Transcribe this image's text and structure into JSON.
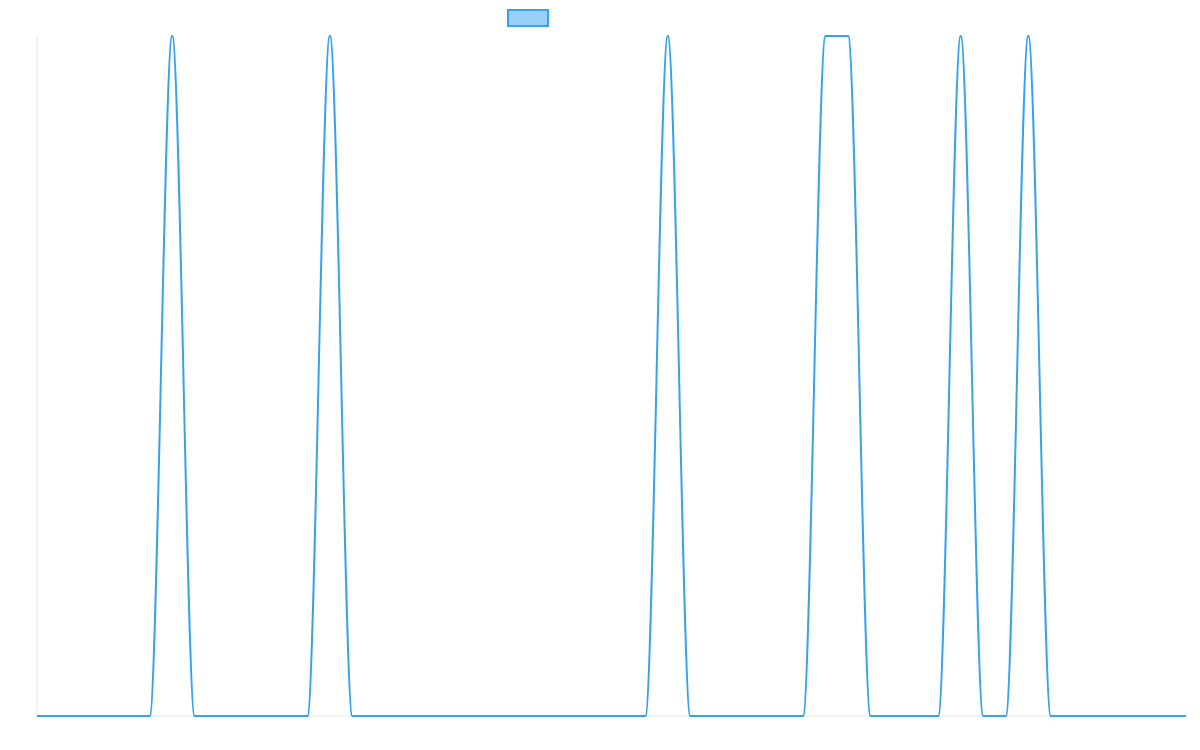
{
  "chart_data": {
    "type": "line",
    "title": "",
    "xlabel": "",
    "ylabel": "",
    "ylim": [
      0,
      1
    ],
    "x": [
      0,
      1,
      2,
      3,
      4,
      5,
      6,
      7,
      8,
      9,
      10,
      11,
      12,
      13,
      14,
      15,
      16,
      17,
      18,
      19,
      20,
      21,
      22,
      23,
      24,
      25,
      26,
      27,
      28,
      29,
      30,
      31,
      32,
      33,
      34,
      35,
      36,
      37,
      38,
      39,
      40,
      41,
      42,
      43,
      44,
      45,
      46,
      47,
      48,
      49,
      50,
      51
    ],
    "series": [
      {
        "values": [
          0,
          0,
          0,
          0,
          0,
          0,
          1,
          0,
          0,
          0,
          0,
          0,
          0,
          1,
          0,
          0,
          0,
          0,
          0,
          0,
          0,
          0,
          0,
          0,
          0,
          0,
          0,
          0,
          1,
          0,
          0,
          0,
          0,
          0,
          0,
          1,
          1,
          0,
          0,
          0,
          0,
          1,
          0,
          0,
          1,
          0,
          0,
          0,
          0,
          0,
          0,
          0
        ],
        "color": "#36a2eb",
        "fill": "#9ad0f5"
      }
    ],
    "grid": false,
    "legend": "top-center"
  }
}
